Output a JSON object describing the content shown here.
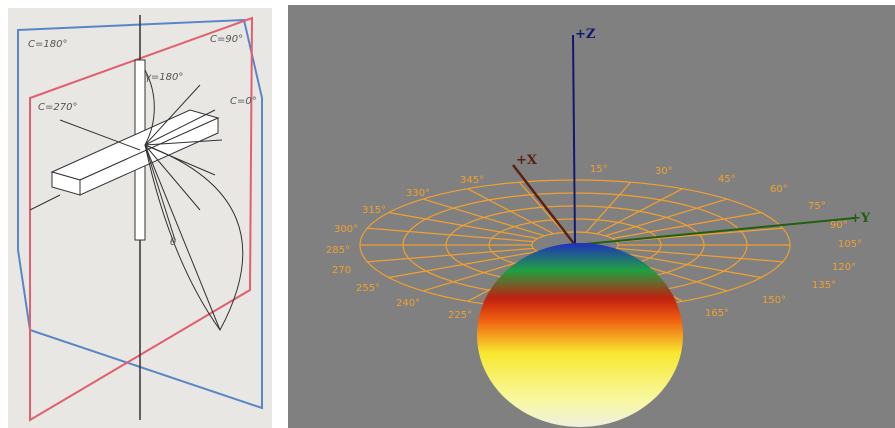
{
  "left_panel": {
    "labels": [
      "C=180°",
      "C=90°",
      "C=270°",
      "C=0°",
      "γ=180°",
      "θ"
    ]
  },
  "right_panel": {
    "axes": [
      "+Z",
      "+X",
      "+Y"
    ],
    "angle_labels": [
      "15°",
      "30°",
      "45°",
      "60°",
      "75°",
      "90°",
      "105°",
      "120°",
      "135°",
      "150°",
      "165°",
      "225°",
      "240°",
      "255°",
      "270",
      "285°",
      "300°",
      "315°",
      "330°",
      "345°"
    ]
  }
}
